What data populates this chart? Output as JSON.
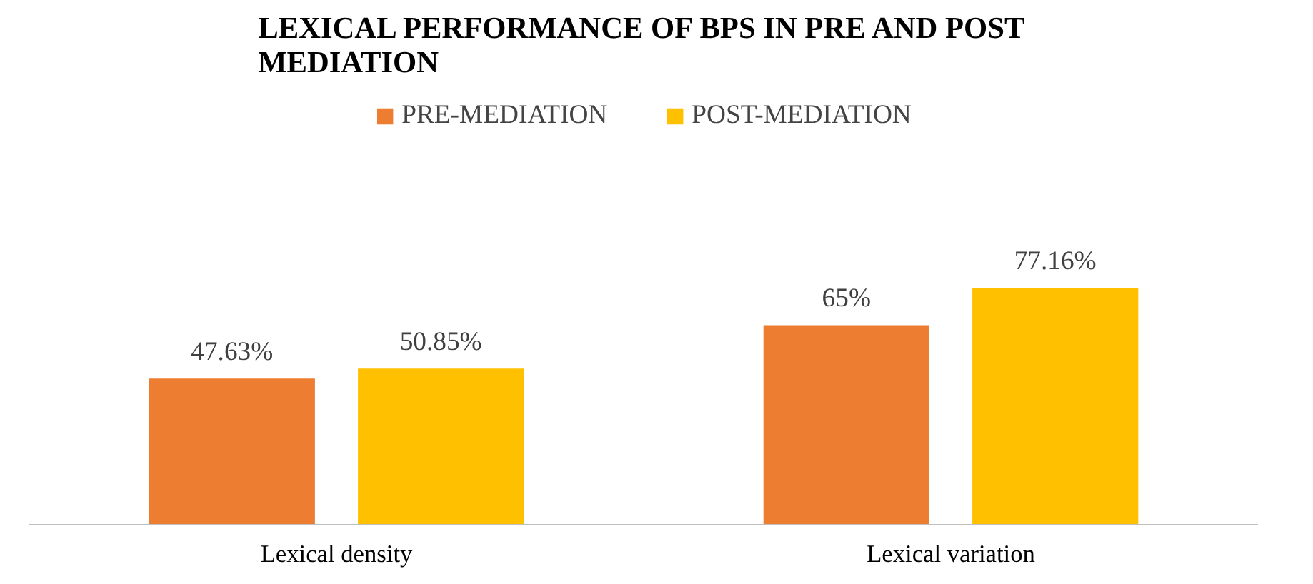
{
  "chart_data": {
    "type": "bar",
    "title": "LEXICAL PERFORMANCE OF BPS IN PRE AND POST MEDIATION",
    "categories": [
      "Lexical density",
      "Lexical variation"
    ],
    "series": [
      {
        "name": "PRE-MEDIATION",
        "color": "#ed7d31",
        "values": [
          47.63,
          65
        ],
        "value_labels": [
          "47.63%",
          "65%"
        ]
      },
      {
        "name": "POST-MEDIATION",
        "color": "#ffc000",
        "values": [
          50.85,
          77.16
        ],
        "value_labels": [
          "50.85%",
          "77.16%"
        ]
      }
    ],
    "legend": "top"
  }
}
